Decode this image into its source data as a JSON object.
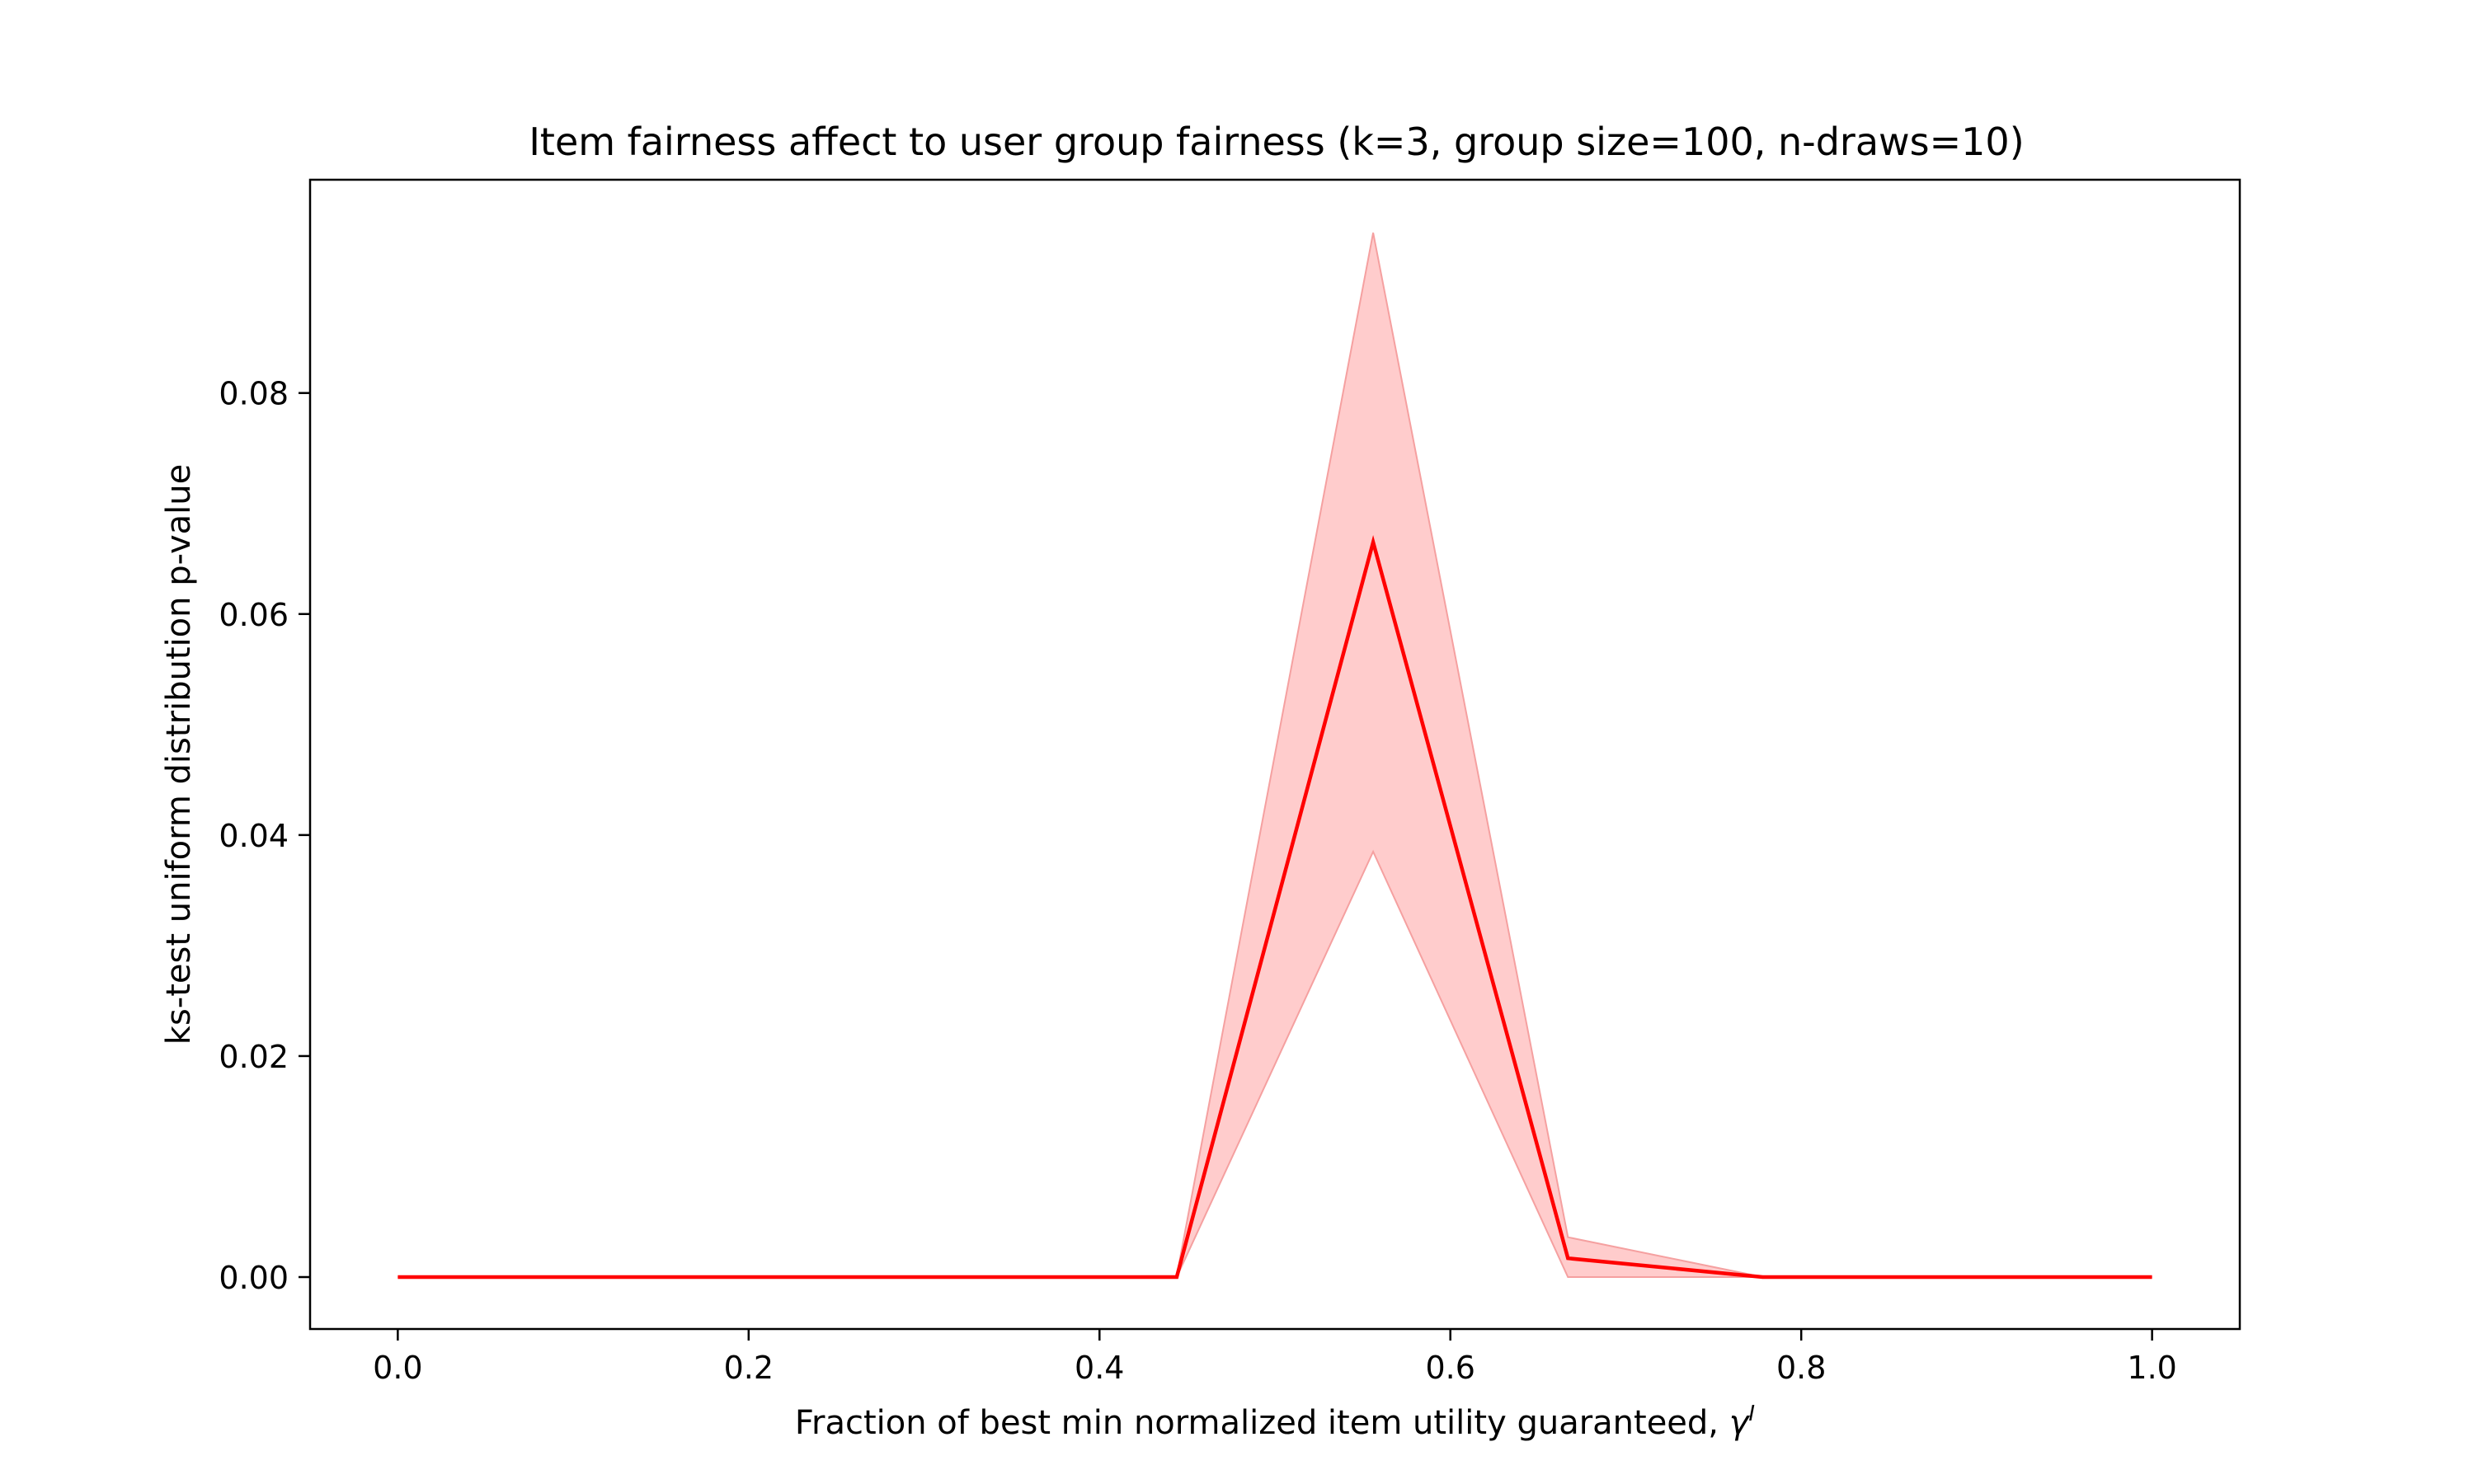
{
  "chart_data": {
    "type": "line",
    "title": "Item fairness affect to user group fairness (k=3, group size=100, n-draws=10)",
    "xlabel": "Fraction of best min normalized item utility guaranteed,",
    "xlabel_symbol": "γ",
    "xlabel_superscript": "I",
    "ylabel": "ks-test uniform distribution p-value",
    "xlim": [
      -0.05,
      1.05
    ],
    "ylim": [
      -0.0047,
      0.0993
    ],
    "x_ticks": [
      "0.0",
      "0.2",
      "0.4",
      "0.6",
      "0.8",
      "1.0"
    ],
    "y_ticks": [
      "0.00",
      "0.02",
      "0.04",
      "0.06",
      "0.08"
    ],
    "grid": false,
    "legend": "none",
    "series": [
      {
        "color": "#ff0000",
        "x": [
          0.0,
          0.111,
          0.222,
          0.333,
          0.444,
          0.556,
          0.667,
          0.778,
          0.889,
          1.0
        ],
        "values": [
          0.0,
          0.0,
          0.0,
          0.0,
          0.0,
          0.0665,
          0.0017,
          0.0,
          0.0,
          0.0
        ],
        "band_upper": [
          0.0,
          0.0,
          0.0,
          0.0,
          0.0001,
          0.0945,
          0.0036,
          0.0,
          0.0,
          0.0
        ],
        "band_lower": [
          0.0,
          0.0,
          0.0,
          0.0,
          0.0,
          0.0385,
          0.0,
          0.0,
          0.0,
          0.0
        ],
        "band_color": "#ffcccc",
        "band_edge_color": "#f5a0a0"
      }
    ]
  }
}
